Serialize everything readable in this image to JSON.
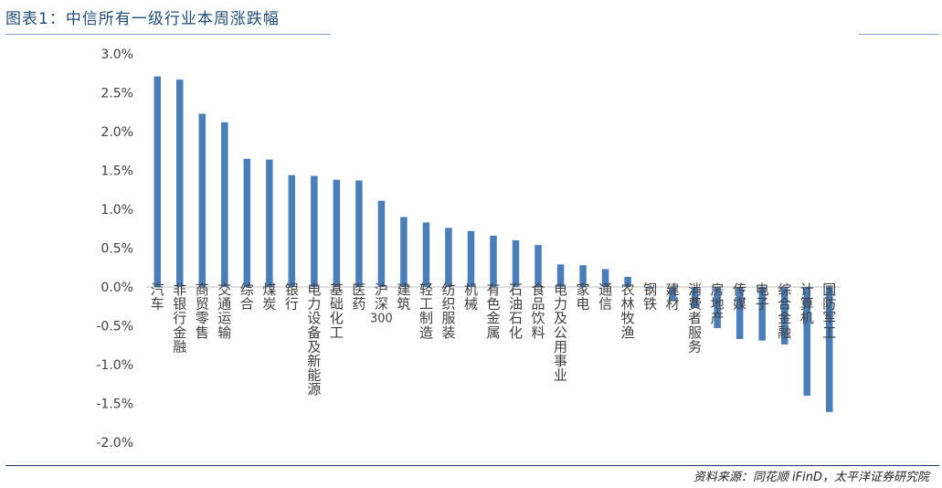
{
  "header": {
    "title": "图表1：中信所有一级行业本周涨跌幅"
  },
  "footer": {
    "source": "资料来源：同花顺 iFinD，太平洋证券研究院"
  },
  "colors": {
    "bar": "#4a7ebb",
    "title": "#1f4e79",
    "grid": "#d9d9d9"
  },
  "chart_data": {
    "type": "bar",
    "title": "",
    "xlabel": "",
    "ylabel": "",
    "ylim": [
      -2.0,
      3.0
    ],
    "yticks": [
      "3.0%",
      "2.5%",
      "2.0%",
      "1.5%",
      "1.0%",
      "0.5%",
      "0.0%",
      "-0.5%",
      "-1.0%",
      "-1.5%",
      "-2.0%"
    ],
    "ytick_values": [
      3.0,
      2.5,
      2.0,
      1.5,
      1.0,
      0.5,
      0.0,
      -0.5,
      -1.0,
      -1.5,
      -2.0
    ],
    "grid": false,
    "categories": [
      "汽车",
      "非银行金融",
      "商贸零售",
      "交通运输",
      "综合",
      "煤炭",
      "银行",
      "电力设备及新能源",
      "基础化工",
      "医药",
      "沪深300",
      "建筑",
      "轻工制造",
      "纺织服装",
      "机械",
      "有色金属",
      "石油石化",
      "食品饮料",
      "电力及公用事业",
      "家电",
      "通信",
      "农林牧渔",
      "钢铁",
      "建材",
      "消费者服务",
      "房地产",
      "传媒",
      "电子",
      "综合金融",
      "计算机",
      "国防军工"
    ],
    "values": [
      2.71,
      2.67,
      2.23,
      2.12,
      1.65,
      1.64,
      1.44,
      1.43,
      1.38,
      1.37,
      1.11,
      0.9,
      0.83,
      0.76,
      0.72,
      0.66,
      0.6,
      0.54,
      0.29,
      0.28,
      0.23,
      0.13,
      -0.02,
      -0.18,
      -0.27,
      -0.53,
      -0.67,
      -0.69,
      -0.74,
      -1.4,
      -1.61
    ]
  }
}
